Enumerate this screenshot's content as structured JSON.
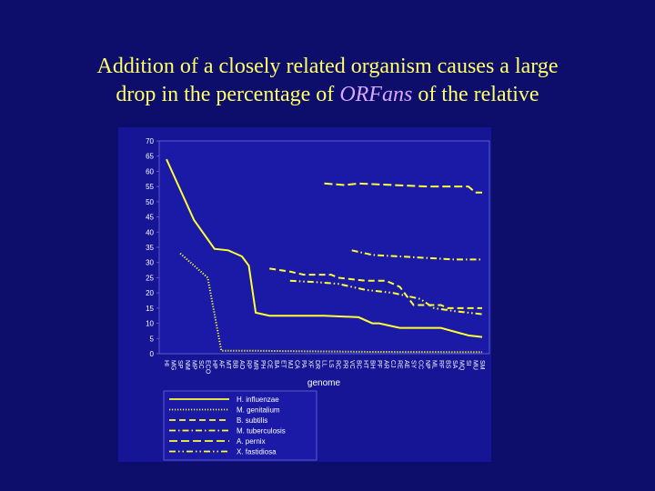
{
  "slide": {
    "title_line1": "Addition of a closely related organism causes a large",
    "title_line2_prefix": "drop in the percentage of ",
    "title_line2_em": "ORFans",
    "title_line2_suffix": " of the relative"
  },
  "chart_data": {
    "type": "line",
    "xlabel": "genome",
    "ylabel": "",
    "ylim": [
      0,
      70
    ],
    "yticks": [
      0,
      5,
      10,
      15,
      20,
      25,
      30,
      35,
      40,
      45,
      50,
      55,
      60,
      65,
      70
    ],
    "categories": [
      "HI",
      "MG",
      "SP",
      "NM",
      "MP",
      "SC",
      "ECO",
      "HP",
      "AF",
      "MT",
      "BB",
      "AO",
      "RP",
      "MR",
      "PH",
      "CE",
      "BA",
      "ET",
      "MJ",
      "CA",
      "PA",
      "XF",
      "DR",
      "LL",
      "LS",
      "RC",
      "PR",
      "VC",
      "BC",
      "HT",
      "BH",
      "PF",
      "AR",
      "CJ",
      "RE",
      "AE",
      "SY",
      "CC",
      "NP",
      "ML",
      "RF",
      "BS",
      "SA",
      "MQ",
      "SI",
      "MU",
      "SM"
    ],
    "series": [
      {
        "name": "H. influenzae",
        "color": "#ffff33",
        "dash": "",
        "x": [
          0,
          4,
          7,
          9,
          11,
          12,
          13,
          15,
          18,
          23,
          28,
          30,
          31,
          34,
          37,
          40,
          44,
          46
        ],
        "values": [
          64,
          44,
          34.5,
          34,
          32,
          29,
          13.5,
          12.5,
          12.5,
          12.5,
          12,
          10,
          10,
          8.5,
          8.5,
          8.5,
          6,
          5.5
        ]
      },
      {
        "name": "M. genitalium",
        "color": "#ffff33",
        "dash": "1.2,1.8",
        "x": [
          2,
          6,
          8,
          9,
          12,
          20,
          30,
          46
        ],
        "values": [
          33,
          25,
          1,
          1,
          1,
          0.8,
          0.6,
          0.5
        ]
      },
      {
        "name": "B. subtilis",
        "color": "#ffff33",
        "dash": "7,4",
        "x": [
          15,
          18,
          20,
          24,
          25,
          29,
          30,
          31,
          32,
          33,
          34,
          36,
          38,
          40,
          41,
          46
        ],
        "values": [
          28,
          27,
          26,
          26,
          25,
          24,
          24,
          24,
          24,
          23,
          22,
          16,
          16,
          16,
          15,
          15
        ]
      },
      {
        "name": "M. tuberculosis",
        "color": "#ffff33",
        "dash": "7,3,1.5,3",
        "x": [
          27,
          28,
          29,
          30,
          34,
          38,
          42,
          46
        ],
        "values": [
          34,
          33.5,
          33,
          32.5,
          32,
          31.5,
          31,
          31
        ]
      },
      {
        "name": "A. pernix",
        "color": "#ffff33",
        "dash": "9,4",
        "x": [
          23,
          26,
          28,
          33,
          38,
          44,
          45,
          46
        ],
        "values": [
          56,
          55.5,
          56,
          55.5,
          55,
          55,
          53,
          53
        ]
      },
      {
        "name": "X. fastidiosa",
        "color": "#ffff33",
        "dash": "7,3,1.5,3,1.5,3",
        "x": [
          18,
          22,
          25,
          27,
          29,
          33,
          37,
          39,
          42,
          46
        ],
        "values": [
          24,
          23.5,
          23,
          22,
          21,
          20,
          18,
          15,
          14,
          13
        ]
      }
    ]
  }
}
